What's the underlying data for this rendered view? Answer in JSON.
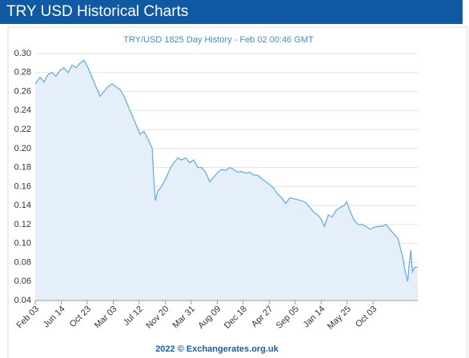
{
  "header": {
    "title": "TRY USD Historical Charts"
  },
  "chart_data": {
    "type": "area",
    "title": "TRY/USD 1825 Day History - Feb 02 00:46 GMT",
    "source": "2022 © Exchangerates.org.uk",
    "color": "#6aaede",
    "fill": "#e4eff9",
    "grid": true,
    "xlim": [
      0,
      1825
    ],
    "xticks": [
      {
        "value": 0,
        "label": "Feb 03"
      },
      {
        "value": 124,
        "label": "Jun 14"
      },
      {
        "value": 248,
        "label": "Oct 23"
      },
      {
        "value": 372,
        "label": "Mar 03"
      },
      {
        "value": 496,
        "label": "Jul 12"
      },
      {
        "value": 620,
        "label": "Nov 20"
      },
      {
        "value": 744,
        "label": "Mar 31"
      },
      {
        "value": 868,
        "label": "Aug 09"
      },
      {
        "value": 992,
        "label": "Dec 18"
      },
      {
        "value": 1116,
        "label": "Apr 27"
      },
      {
        "value": 1240,
        "label": "Sep 05"
      },
      {
        "value": 1364,
        "label": "Jan 14"
      },
      {
        "value": 1488,
        "label": "May 25"
      },
      {
        "value": 1612,
        "label": "Oct 03"
      }
    ],
    "ylim": [
      0.04,
      0.3
    ],
    "yticks": [
      0.04,
      0.06,
      0.08,
      {
        "value": 0.1,
        "label": "0.10"
      },
      0.12,
      0.14,
      0.16,
      0.18,
      {
        "value": 0.2,
        "label": "0.20"
      },
      0.22,
      0.24,
      0.26,
      0.28,
      {
        "value": 0.3,
        "label": "0.30"
      }
    ],
    "x": [
      0,
      23,
      42,
      61,
      80,
      99,
      118,
      137,
      157,
      176,
      195,
      214,
      233,
      252,
      271,
      290,
      309,
      328,
      347,
      367,
      386,
      405,
      424,
      443,
      462,
      481,
      500,
      519,
      538,
      558,
      565,
      573,
      584,
      603,
      622,
      642,
      661,
      680,
      699,
      718,
      737,
      756,
      775,
      794,
      813,
      833,
      852,
      871,
      890,
      909,
      928,
      947,
      966,
      985,
      1004,
      1023,
      1043,
      1062,
      1081,
      1100,
      1119,
      1138,
      1157,
      1176,
      1195,
      1214,
      1234,
      1253,
      1272,
      1291,
      1310,
      1329,
      1348,
      1367,
      1379,
      1398,
      1417,
      1436,
      1455,
      1474,
      1486,
      1501,
      1520,
      1540,
      1559,
      1578,
      1597,
      1616,
      1635,
      1654,
      1673,
      1692,
      1711,
      1731,
      1742,
      1754,
      1765,
      1777,
      1784,
      1792,
      1799,
      1811,
      1825
    ],
    "values": [
      0.268,
      0.275,
      0.27,
      0.278,
      0.28,
      0.276,
      0.282,
      0.285,
      0.28,
      0.288,
      0.285,
      0.29,
      0.293,
      0.285,
      0.275,
      0.265,
      0.255,
      0.26,
      0.265,
      0.268,
      0.265,
      0.262,
      0.255,
      0.245,
      0.235,
      0.225,
      0.215,
      0.218,
      0.21,
      0.2,
      0.17,
      0.145,
      0.155,
      0.16,
      0.168,
      0.178,
      0.185,
      0.19,
      0.188,
      0.19,
      0.185,
      0.188,
      0.18,
      0.18,
      0.175,
      0.165,
      0.17,
      0.175,
      0.178,
      0.177,
      0.18,
      0.178,
      0.175,
      0.176,
      0.174,
      0.175,
      0.172,
      0.172,
      0.168,
      0.165,
      0.162,
      0.158,
      0.152,
      0.148,
      0.142,
      0.148,
      0.147,
      0.146,
      0.145,
      0.143,
      0.138,
      0.133,
      0.13,
      0.125,
      0.118,
      0.13,
      0.128,
      0.135,
      0.138,
      0.14,
      0.144,
      0.135,
      0.125,
      0.12,
      0.12,
      0.118,
      0.115,
      0.117,
      0.118,
      0.118,
      0.12,
      0.115,
      0.11,
      0.105,
      0.095,
      0.085,
      0.07,
      0.06,
      0.078,
      0.093,
      0.07,
      0.075,
      0.075
    ]
  }
}
